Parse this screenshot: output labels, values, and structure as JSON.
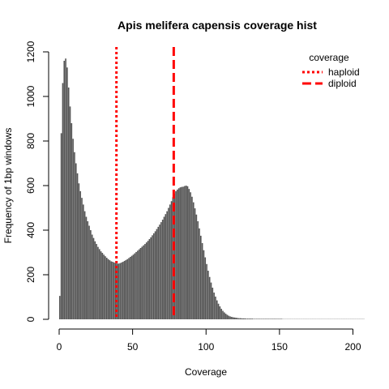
{
  "chart_data": {
    "type": "bar",
    "title": "Apis melifera capensis coverage hist",
    "xlabel": "Coverage",
    "ylabel": "Frequency of 1bp windows",
    "xlim": [
      0,
      208
    ],
    "ylim": [
      0,
      1200
    ],
    "x_ticks": [
      0,
      50,
      100,
      150,
      200
    ],
    "y_ticks": [
      0,
      200,
      400,
      600,
      800,
      1000,
      1200
    ],
    "bar_color": "#555555",
    "bins": [
      [
        0,
        105
      ],
      [
        1,
        835
      ],
      [
        2,
        1060
      ],
      [
        3,
        1160
      ],
      [
        4,
        1170
      ],
      [
        5,
        1130
      ],
      [
        6,
        1040
      ],
      [
        7,
        955
      ],
      [
        8,
        880
      ],
      [
        9,
        810
      ],
      [
        10,
        750
      ],
      [
        11,
        700
      ],
      [
        12,
        655
      ],
      [
        13,
        610
      ],
      [
        14,
        575
      ],
      [
        15,
        545
      ],
      [
        16,
        515
      ],
      [
        17,
        485
      ],
      [
        18,
        460
      ],
      [
        19,
        440
      ],
      [
        20,
        420
      ],
      [
        21,
        400
      ],
      [
        22,
        380
      ],
      [
        23,
        365
      ],
      [
        24,
        350
      ],
      [
        25,
        338
      ],
      [
        26,
        325
      ],
      [
        27,
        315
      ],
      [
        28,
        305
      ],
      [
        29,
        298
      ],
      [
        30,
        290
      ],
      [
        31,
        283
      ],
      [
        32,
        276
      ],
      [
        33,
        270
      ],
      [
        34,
        265
      ],
      [
        35,
        260
      ],
      [
        36,
        258
      ],
      [
        37,
        255
      ],
      [
        38,
        252
      ],
      [
        39,
        250
      ],
      [
        40,
        250
      ],
      [
        41,
        252
      ],
      [
        42,
        255
      ],
      [
        43,
        258
      ],
      [
        44,
        262
      ],
      [
        45,
        266
      ],
      [
        46,
        270
      ],
      [
        47,
        275
      ],
      [
        48,
        280
      ],
      [
        49,
        285
      ],
      [
        50,
        290
      ],
      [
        51,
        296
      ],
      [
        52,
        302
      ],
      [
        53,
        308
      ],
      [
        54,
        314
      ],
      [
        55,
        320
      ],
      [
        56,
        326
      ],
      [
        57,
        332
      ],
      [
        58,
        338
      ],
      [
        59,
        345
      ],
      [
        60,
        352
      ],
      [
        61,
        360
      ],
      [
        62,
        368
      ],
      [
        63,
        377
      ],
      [
        64,
        386
      ],
      [
        65,
        395
      ],
      [
        66,
        405
      ],
      [
        67,
        415
      ],
      [
        68,
        425
      ],
      [
        69,
        436
      ],
      [
        70,
        447
      ],
      [
        71,
        460
      ],
      [
        72,
        472
      ],
      [
        73,
        485
      ],
      [
        74,
        500
      ],
      [
        75,
        515
      ],
      [
        76,
        530
      ],
      [
        77,
        548
      ],
      [
        78,
        565
      ],
      [
        79,
        575
      ],
      [
        80,
        582
      ],
      [
        81,
        588
      ],
      [
        82,
        592
      ],
      [
        83,
        594
      ],
      [
        84,
        595
      ],
      [
        85,
        598
      ],
      [
        86,
        600
      ],
      [
        87,
        597
      ],
      [
        88,
        585
      ],
      [
        89,
        570
      ],
      [
        90,
        550
      ],
      [
        91,
        525
      ],
      [
        92,
        498
      ],
      [
        93,
        470
      ],
      [
        94,
        440
      ],
      [
        95,
        408
      ],
      [
        96,
        375
      ],
      [
        97,
        342
      ],
      [
        98,
        310
      ],
      [
        99,
        278
      ],
      [
        100,
        248
      ],
      [
        101,
        218
      ],
      [
        102,
        190
      ],
      [
        103,
        165
      ],
      [
        104,
        142
      ],
      [
        105,
        120
      ],
      [
        106,
        102
      ],
      [
        107,
        85
      ],
      [
        108,
        70
      ],
      [
        109,
        58
      ],
      [
        110,
        47
      ],
      [
        111,
        38
      ],
      [
        112,
        31
      ],
      [
        113,
        25
      ],
      [
        114,
        20
      ],
      [
        115,
        16
      ],
      [
        116,
        13
      ],
      [
        117,
        11
      ],
      [
        118,
        9
      ],
      [
        119,
        8
      ],
      [
        120,
        7
      ],
      [
        121,
        6
      ],
      [
        122,
        5
      ],
      [
        123,
        5
      ],
      [
        124,
        4
      ],
      [
        125,
        4
      ],
      [
        126,
        4
      ],
      [
        127,
        3
      ],
      [
        128,
        3
      ],
      [
        129,
        3
      ],
      [
        130,
        3
      ],
      [
        131,
        3
      ],
      [
        132,
        2
      ],
      [
        133,
        2
      ],
      [
        134,
        2
      ],
      [
        135,
        2
      ],
      [
        136,
        2
      ],
      [
        137,
        2
      ],
      [
        138,
        2
      ],
      [
        139,
        2
      ],
      [
        140,
        2
      ],
      [
        141,
        2
      ],
      [
        142,
        2
      ],
      [
        143,
        2
      ],
      [
        144,
        2
      ],
      [
        145,
        2
      ],
      [
        146,
        2
      ],
      [
        147,
        2
      ],
      [
        148,
        2
      ],
      [
        149,
        2
      ],
      [
        150,
        2
      ],
      [
        151,
        2
      ],
      [
        152,
        1
      ],
      [
        153,
        1
      ],
      [
        154,
        1
      ],
      [
        155,
        1
      ],
      [
        156,
        1
      ],
      [
        157,
        1
      ],
      [
        158,
        1
      ],
      [
        159,
        1
      ],
      [
        160,
        1
      ],
      [
        161,
        1
      ],
      [
        162,
        1
      ],
      [
        163,
        1
      ],
      [
        164,
        1
      ],
      [
        165,
        1
      ],
      [
        166,
        1
      ],
      [
        167,
        1
      ],
      [
        168,
        1
      ],
      [
        169,
        1
      ],
      [
        170,
        1
      ],
      [
        171,
        1
      ],
      [
        172,
        1
      ],
      [
        173,
        1
      ],
      [
        174,
        1
      ],
      [
        175,
        1
      ],
      [
        176,
        1
      ],
      [
        177,
        1
      ],
      [
        178,
        1
      ],
      [
        179,
        1
      ],
      [
        180,
        1
      ],
      [
        181,
        1
      ],
      [
        182,
        1
      ],
      [
        183,
        1
      ],
      [
        184,
        1
      ],
      [
        185,
        1
      ],
      [
        186,
        1
      ],
      [
        187,
        1
      ],
      [
        188,
        1
      ],
      [
        189,
        1
      ],
      [
        190,
        1
      ],
      [
        191,
        1
      ],
      [
        192,
        1
      ],
      [
        193,
        1
      ],
      [
        194,
        1
      ],
      [
        195,
        1
      ],
      [
        196,
        1
      ],
      [
        197,
        1
      ],
      [
        198,
        1
      ],
      [
        199,
        1
      ],
      [
        200,
        1
      ],
      [
        201,
        1
      ],
      [
        202,
        1
      ],
      [
        203,
        1
      ],
      [
        204,
        1
      ],
      [
        205,
        1
      ],
      [
        206,
        1
      ],
      [
        207,
        1
      ]
    ],
    "vlines": [
      {
        "name": "haploid",
        "x": 39,
        "color": "#ff0000",
        "style": "dotted"
      },
      {
        "name": "diploid",
        "x": 78,
        "color": "#ff0000",
        "style": "dashed"
      }
    ],
    "legend": {
      "title": "coverage",
      "position": "top-right",
      "entries": [
        {
          "label": "haploid",
          "color": "#ff0000",
          "style": "dotted"
        },
        {
          "label": "diploid",
          "color": "#ff0000",
          "style": "dashed"
        }
      ]
    }
  }
}
